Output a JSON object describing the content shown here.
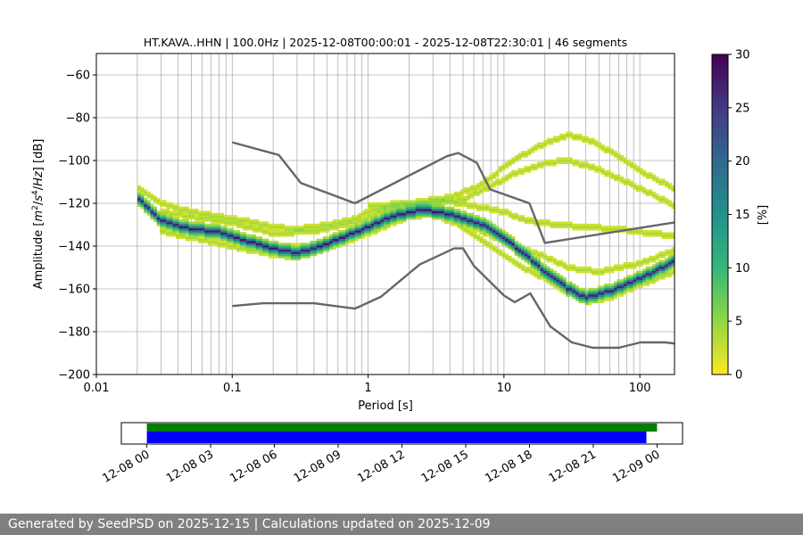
{
  "footer": {
    "text": "Generated by SeedPSD on 2025-12-15 | Calculations updated on 2025-12-09"
  },
  "chart_data": [
    {
      "type": "heatmap",
      "title": "HT.KAVA..HHN | 100.0Hz | 2025-12-08T00:00:01 - 2025-12-08T22:30:01 | 46 segments",
      "xlabel": "Period [s]",
      "ylabel_parts": [
        "Amplitude [",
        "m",
        "2",
        "/",
        "s",
        "4",
        "/",
        "Hz",
        "] [dB]"
      ],
      "xscale": "log",
      "xlim": [
        0.01,
        180
      ],
      "ylim": [
        -200,
        -50
      ],
      "x_ticks": [
        0.01,
        0.1,
        1,
        10,
        100
      ],
      "x_tick_labels": [
        "0.01",
        "0.1",
        "1",
        "10",
        "100"
      ],
      "y_ticks": [
        -200,
        -180,
        -160,
        -140,
        -120,
        -100,
        -80,
        -60
      ],
      "y_tick_labels": [
        "−200",
        "−180",
        "−160",
        "−140",
        "−120",
        "−100",
        "−80",
        "−60"
      ],
      "grid": true,
      "colorbar": {
        "label": "[%]",
        "range": [
          0,
          30
        ],
        "ticks": [
          0,
          5,
          10,
          15,
          20,
          25,
          30
        ],
        "tick_labels": [
          "0",
          "5",
          "10",
          "15",
          "20",
          "25",
          "30"
        ],
        "colormap": [
          "#fde725",
          "#90d743",
          "#35b779",
          "#21918c",
          "#31688e",
          "#443983",
          "#440154"
        ]
      },
      "noise_models": [
        {
          "name": "high",
          "color": "#666666",
          "points": [
            [
              0.1,
              -91.5
            ],
            [
              0.22,
              -97.4
            ],
            [
              0.32,
              -110.5
            ],
            [
              0.8,
              -120
            ],
            [
              3.8,
              -98
            ],
            [
              4.6,
              -96.5
            ],
            [
              6.3,
              -101
            ],
            [
              7.9,
              -113.5
            ],
            [
              15.4,
              -120
            ],
            [
              20,
              -138.5
            ],
            [
              354,
              -126
            ]
          ]
        },
        {
          "name": "low",
          "color": "#666666",
          "points": [
            [
              0.1,
              -168
            ],
            [
              0.17,
              -166.7
            ],
            [
              0.4,
              -166.7
            ],
            [
              0.8,
              -169.2
            ],
            [
              1.24,
              -163.7
            ],
            [
              2.4,
              -148.6
            ],
            [
              4.3,
              -141.1
            ],
            [
              5,
              -141.1
            ],
            [
              6,
              -149.2
            ],
            [
              10,
              -163.1
            ],
            [
              12,
              -166.2
            ],
            [
              15.6,
              -162.1
            ],
            [
              21.9,
              -177.5
            ],
            [
              31.6,
              -185
            ],
            [
              45,
              -187.5
            ],
            [
              70,
              -187.5
            ],
            [
              101,
              -185
            ],
            [
              154,
              -185
            ],
            [
              328,
              -187.5
            ]
          ]
        }
      ],
      "psd_modes": [
        {
          "name": "mode",
          "points": [
            [
              0.02,
              -117
            ],
            [
              0.03,
              -128
            ],
            [
              0.05,
              -132
            ],
            [
              0.08,
              -133
            ],
            [
              0.12,
              -137
            ],
            [
              0.2,
              -141
            ],
            [
              0.3,
              -143
            ],
            [
              0.45,
              -140
            ],
            [
              0.7,
              -135
            ],
            [
              1,
              -131
            ],
            [
              1.5,
              -126
            ],
            [
              2.5,
              -123
            ],
            [
              3.5,
              -124
            ],
            [
              5,
              -127
            ],
            [
              7,
              -130
            ],
            [
              10,
              -136
            ],
            [
              15,
              -145
            ],
            [
              20,
              -152
            ],
            [
              30,
              -160
            ],
            [
              40,
              -164
            ],
            [
              60,
              -161
            ],
            [
              100,
              -155
            ],
            [
              180,
              -147
            ]
          ]
        },
        {
          "name": "upper",
          "points": [
            [
              0.02,
              -112
            ],
            [
              0.03,
              -120
            ],
            [
              0.05,
              -124
            ],
            [
              0.08,
              -126
            ],
            [
              0.12,
              -128
            ],
            [
              0.2,
              -131
            ],
            [
              0.3,
              -132
            ],
            [
              0.5,
              -130
            ],
            [
              0.8,
              -127
            ],
            [
              1,
              -124
            ],
            [
              1.5,
              -121
            ],
            [
              2.5,
              -119
            ],
            [
              4,
              -117
            ],
            [
              6,
              -113
            ],
            [
              8,
              -108
            ],
            [
              10,
              -103
            ],
            [
              14,
              -97
            ],
            [
              20,
              -92
            ],
            [
              30,
              -88
            ],
            [
              45,
              -91
            ],
            [
              70,
              -98
            ],
            [
              100,
              -105
            ],
            [
              180,
              -113
            ]
          ]
        },
        {
          "name": "upper-mid",
          "points": [
            [
              0.03,
              -124
            ],
            [
              0.06,
              -127
            ],
            [
              0.1,
              -129
            ],
            [
              0.2,
              -134
            ],
            [
              0.4,
              -133
            ],
            [
              0.8,
              -129
            ],
            [
              1.5,
              -122
            ],
            [
              3,
              -120
            ],
            [
              5,
              -118
            ],
            [
              8,
              -112
            ],
            [
              12,
              -106
            ],
            [
              20,
              -101
            ],
            [
              30,
              -100
            ],
            [
              50,
              -104
            ],
            [
              100,
              -113
            ],
            [
              180,
              -121
            ]
          ]
        },
        {
          "name": "lower-mid",
          "points": [
            [
              0.03,
              -131
            ],
            [
              0.06,
              -134
            ],
            [
              0.1,
              -137
            ],
            [
              0.2,
              -140
            ],
            [
              0.35,
              -140
            ],
            [
              0.6,
              -137
            ],
            [
              1,
              -132
            ],
            [
              2,
              -125
            ],
            [
              3,
              -124
            ],
            [
              5,
              -129
            ],
            [
              8,
              -135
            ],
            [
              12,
              -140
            ],
            [
              20,
              -145
            ],
            [
              30,
              -150
            ],
            [
              50,
              -152
            ],
            [
              100,
              -148
            ],
            [
              180,
              -142
            ]
          ]
        },
        {
          "name": "flat",
          "points": [
            [
              1,
              -121
            ],
            [
              2,
              -120
            ],
            [
              4,
              -119
            ],
            [
              7,
              -122
            ],
            [
              10,
              -124
            ],
            [
              15,
              -128
            ],
            [
              25,
              -130
            ],
            [
              40,
              -131
            ],
            [
              70,
              -132
            ],
            [
              120,
              -134
            ],
            [
              180,
              -135
            ]
          ]
        },
        {
          "name": "lower",
          "points": [
            [
              0.03,
              -133
            ],
            [
              0.1,
              -140
            ],
            [
              0.2,
              -144
            ],
            [
              0.3,
              -145
            ],
            [
              0.5,
              -141
            ],
            [
              1,
              -134
            ],
            [
              2,
              -126
            ],
            [
              3,
              -125
            ],
            [
              5,
              -131
            ],
            [
              8,
              -140
            ],
            [
              12,
              -148
            ],
            [
              20,
              -155
            ],
            [
              30,
              -162
            ],
            [
              40,
              -166
            ],
            [
              60,
              -164
            ],
            [
              100,
              -158
            ],
            [
              180,
              -152
            ]
          ]
        }
      ]
    },
    {
      "type": "timeline",
      "x_tick_labels": [
        "12-08 00",
        "12-08 03",
        "12-08 06",
        "12-08 09",
        "12-08 12",
        "12-08 15",
        "12-08 18",
        "12-08 21",
        "12-09 00"
      ],
      "x_ticks_hours": [
        0,
        3,
        6,
        9,
        12,
        15,
        18,
        21,
        24
      ],
      "xlim_hours": [
        -1.2,
        25.2
      ],
      "bars": [
        {
          "color": "#008000",
          "start_hour": 0,
          "end_hour": 24
        },
        {
          "color": "#0000ff",
          "start_hour": 0,
          "end_hour": 23.5
        }
      ]
    }
  ]
}
